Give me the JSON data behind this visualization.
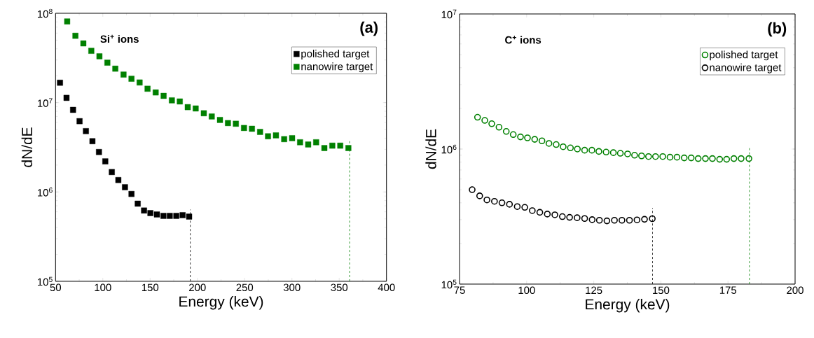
{
  "chart_data": [
    {
      "type": "scatter",
      "xlabel": "Energy (keV)",
      "ylabel": "dN/dE",
      "annotations": [
        "Si$^{+}$ ions",
        "(a)"
      ],
      "log": "y",
      "legend": "top right",
      "marker": "square",
      "xlim": [
        50,
        400
      ],
      "xticks": [
        50,
        100,
        150,
        200,
        250,
        300,
        350,
        400
      ],
      "ylim": [
        100000,
        100000000
      ],
      "yticks": [
        {
          "value": 100000,
          "label": "10$^{5}$"
        },
        {
          "value": 1000000,
          "label": "10$^{6}$"
        },
        {
          "value": 10000000,
          "label": "10$^{7}$"
        },
        {
          "value": 100000000,
          "label": "10$^{8}$"
        }
      ],
      "series": [
        {
          "name": "polished target",
          "color": "#000000",
          "x": [
            54.7,
            61.6,
            68.5,
            75.4,
            82.1,
            89.0,
            95.9,
            102.6,
            109.5,
            116.4,
            123.4,
            130.3,
            136.9,
            143.6,
            150.3,
            157.2,
            164.1,
            170.8,
            177.7,
            184.4,
            191.3
          ],
          "values": [
            16700000,
            11300000,
            8300000,
            6200000,
            4800000,
            3700000,
            2800000,
            2200000,
            1670000,
            1360000,
            1130000,
            950000,
            740000,
            620000,
            580000,
            560000,
            540000,
            540000,
            540000,
            550000,
            530000
          ]
        },
        {
          "name": "nanowire target",
          "color": "#008000",
          "x": [
            62.3,
            71.0,
            79.4,
            87.8,
            96.4,
            104.8,
            113.2,
            121.9,
            130.3,
            138.9,
            147.3,
            155.9,
            164.3,
            173.0,
            181.4,
            189.8,
            198.2,
            206.8,
            215.2,
            223.9,
            232.3,
            240.7,
            249.3,
            257.7,
            266.3,
            274.7,
            283.1,
            291.8,
            300.2,
            308.6,
            317.2,
            325.6,
            334.3,
            342.7,
            351.1,
            359.7
          ],
          "values": [
            81000000,
            56000000,
            46000000,
            38000000,
            33000000,
            28000000,
            24000000,
            20600000,
            18500000,
            16800000,
            14300000,
            13000000,
            11900000,
            10600000,
            10300000,
            8900000,
            8600000,
            7600000,
            7000000,
            6400000,
            5900000,
            5800000,
            5200000,
            5100000,
            4700000,
            4200000,
            4300000,
            3900000,
            4000000,
            3600000,
            3400000,
            3600000,
            3100000,
            3300000,
            3300000,
            3100000
          ]
        }
      ],
      "ref_lines": [
        {
          "axis": "x",
          "value": 192.5,
          "color": "#000000",
          "line_style": "dashed"
        },
        {
          "axis": "x",
          "value": 361,
          "color": "#008000",
          "line_style": "dashed"
        }
      ]
    },
    {
      "type": "scatter",
      "xlabel": "Energy (keV)",
      "ylabel": "dN/dE",
      "annotations": [
        "C$^{+}$ ions",
        "(b)"
      ],
      "log": "y",
      "legend": "top right",
      "marker": "circle",
      "xlim": [
        75,
        200
      ],
      "xticks": [
        75,
        100,
        125,
        150,
        175,
        200
      ],
      "ylim": [
        100000,
        10000000
      ],
      "yticks": [
        {
          "value": 100000,
          "label": "10$^{5}$"
        },
        {
          "value": 1000000,
          "label": "10$^{6}$"
        },
        {
          "value": 10000000,
          "label": "10$^{7}$"
        }
      ],
      "series": [
        {
          "name": "polished target",
          "color": "#008000",
          "x": [
            81.7,
            84.4,
            87.0,
            89.7,
            92.4,
            95.0,
            97.7,
            100.3,
            103.0,
            105.7,
            108.3,
            111.0,
            113.6,
            116.3,
            118.9,
            121.6,
            124.3,
            126.9,
            129.6,
            132.3,
            134.9,
            137.6,
            140.2,
            142.8,
            145.4,
            148.0,
            150.7,
            153.4,
            156.0,
            158.7,
            161.3,
            163.9,
            166.6,
            169.2,
            171.9,
            174.5,
            177.2,
            179.9,
            182.8
          ],
          "values": [
            1720000,
            1630000,
            1540000,
            1450000,
            1350000,
            1280000,
            1230000,
            1210000,
            1180000,
            1150000,
            1100000,
            1080000,
            1040000,
            1020000,
            1000000,
            980000,
            980000,
            960000,
            950000,
            940000,
            930000,
            920000,
            900000,
            890000,
            880000,
            880000,
            880000,
            870000,
            870000,
            860000,
            860000,
            850000,
            850000,
            850000,
            840000,
            840000,
            850000,
            850000,
            850000
          ]
        },
        {
          "name": "nanowire target",
          "color": "#000000",
          "x": [
            79.7,
            82.5,
            85.2,
            88.0,
            90.8,
            93.6,
            96.5,
            99.3,
            102.1,
            104.9,
            107.7,
            110.5,
            113.3,
            116.0,
            118.8,
            121.6,
            124.4,
            127.1,
            129.9,
            132.7,
            135.5,
            138.3,
            141.1,
            143.9,
            146.8
          ],
          "values": [
            500000,
            450000,
            420000,
            410000,
            400000,
            390000,
            375000,
            370000,
            350000,
            340000,
            330000,
            326000,
            316000,
            312000,
            310000,
            306000,
            300000,
            297000,
            294000,
            297000,
            297000,
            297000,
            299000,
            302000,
            305000
          ]
        }
      ],
      "ref_lines": [
        {
          "axis": "x",
          "value": 146.9,
          "color": "#000000",
          "line_style": "dashed"
        },
        {
          "axis": "x",
          "value": 183.0,
          "color": "#008000",
          "line_style": "dashed"
        }
      ]
    }
  ]
}
